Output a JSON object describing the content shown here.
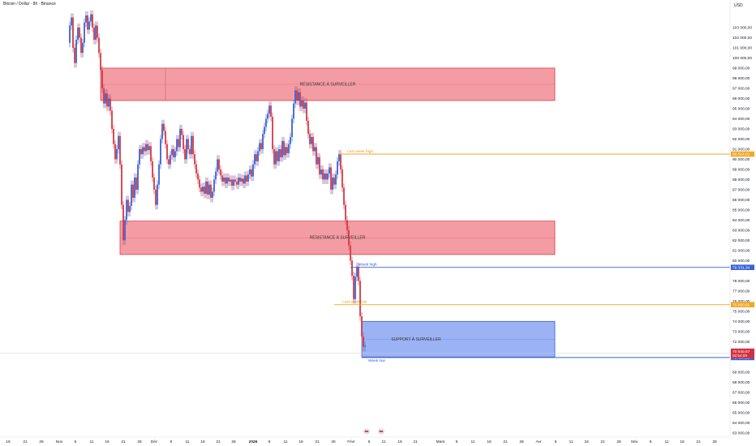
{
  "chart_data": {
    "type": "candlestick",
    "title": "Bitcoin / Dollar · 8h · Binance",
    "currency": "USD",
    "ylim": [
      62500,
      104600
    ],
    "y_ticks": [
      {
        "v": 103000,
        "label": "103 000,00"
      },
      {
        "v": 102000,
        "label": "102 000,00"
      },
      {
        "v": 101000,
        "label": "101 000,00"
      },
      {
        "v": 100000,
        "label": "100 000,00"
      },
      {
        "v": 99000,
        "label": "99 000,00"
      },
      {
        "v": 98000,
        "label": "98 000,00"
      },
      {
        "v": 97000,
        "label": "97 000,00"
      },
      {
        "v": 96000,
        "label": "96 000,00"
      },
      {
        "v": 95000,
        "label": "95 000,00"
      },
      {
        "v": 94000,
        "label": "94 000,00"
      },
      {
        "v": 93000,
        "label": "93 000,00"
      },
      {
        "v": 92000,
        "label": "92 000,00"
      },
      {
        "v": 91000,
        "label": "91 000,00"
      },
      {
        "v": 90000,
        "label": "90 000,00"
      },
      {
        "v": 89000,
        "label": "89 000,00"
      },
      {
        "v": 88000,
        "label": "88 000,00"
      },
      {
        "v": 87000,
        "label": "87 000,00"
      },
      {
        "v": 86000,
        "label": "86 000,00"
      },
      {
        "v": 85000,
        "label": "85 000,00"
      },
      {
        "v": 84000,
        "label": "84 000,00"
      },
      {
        "v": 83000,
        "label": "83 000,00"
      },
      {
        "v": 82000,
        "label": "82 000,00"
      },
      {
        "v": 81000,
        "label": "81 000,00"
      },
      {
        "v": 80000,
        "label": "80 000,00"
      },
      {
        "v": 78000,
        "label": "78 000,00"
      },
      {
        "v": 77000,
        "label": "77 000,00"
      },
      {
        "v": 76000,
        "label": "76 000,00"
      },
      {
        "v": 75000,
        "label": "75 000,00"
      },
      {
        "v": 74000,
        "label": "74 000,00"
      },
      {
        "v": 73000,
        "label": "73 000,00"
      },
      {
        "v": 72000,
        "label": "72 000,00"
      },
      {
        "v": 69000,
        "label": "69 000,00"
      },
      {
        "v": 68000,
        "label": "68 000,00"
      },
      {
        "v": 67000,
        "label": "67 000,00"
      },
      {
        "v": 66000,
        "label": "66 000,00"
      },
      {
        "v": 65000,
        "label": "65 000,00"
      },
      {
        "v": 64000,
        "label": "64 000,00"
      },
      {
        "v": 63000,
        "label": "63 000,00"
      }
    ],
    "x_ticks": [
      {
        "x": 10,
        "label": "16",
        "bold": false
      },
      {
        "x": 31,
        "label": "21",
        "bold": false
      },
      {
        "x": 51,
        "label": "26",
        "bold": false
      },
      {
        "x": 73,
        "label": "Nov",
        "bold": false
      },
      {
        "x": 93,
        "label": "6",
        "bold": false
      },
      {
        "x": 113,
        "label": "11",
        "bold": false
      },
      {
        "x": 132,
        "label": "16",
        "bold": false
      },
      {
        "x": 152,
        "label": "21",
        "bold": false
      },
      {
        "x": 172,
        "label": "26",
        "bold": false
      },
      {
        "x": 190,
        "label": "Déc",
        "bold": false
      },
      {
        "x": 211,
        "label": "6",
        "bold": false
      },
      {
        "x": 231,
        "label": "11",
        "bold": false
      },
      {
        "x": 250,
        "label": "16",
        "bold": false
      },
      {
        "x": 269,
        "label": "21",
        "bold": false
      },
      {
        "x": 288,
        "label": "26",
        "bold": false
      },
      {
        "x": 312,
        "label": "2026",
        "bold": true
      },
      {
        "x": 332,
        "label": "6",
        "bold": false
      },
      {
        "x": 352,
        "label": "11",
        "bold": false
      },
      {
        "x": 371,
        "label": "16",
        "bold": false
      },
      {
        "x": 391,
        "label": "21",
        "bold": false
      },
      {
        "x": 411,
        "label": "26",
        "bold": false
      },
      {
        "x": 433,
        "label": "Févr",
        "bold": false
      },
      {
        "x": 455,
        "label": "6",
        "bold": false
      },
      {
        "x": 473,
        "label": "11",
        "bold": false
      },
      {
        "x": 493,
        "label": "16",
        "bold": false
      },
      {
        "x": 512,
        "label": "21",
        "bold": false
      },
      {
        "x": 543,
        "label": "Mars",
        "bold": false
      },
      {
        "x": 563,
        "label": "6",
        "bold": false
      },
      {
        "x": 583,
        "label": "11",
        "bold": false
      },
      {
        "x": 603,
        "label": "16",
        "bold": false
      },
      {
        "x": 623,
        "label": "21",
        "bold": false
      },
      {
        "x": 643,
        "label": "26",
        "bold": false
      },
      {
        "x": 664,
        "label": "Avr",
        "bold": false
      },
      {
        "x": 685,
        "label": "6",
        "bold": false
      },
      {
        "x": 704,
        "label": "11",
        "bold": false
      },
      {
        "x": 723,
        "label": "16",
        "bold": false
      },
      {
        "x": 743,
        "label": "21",
        "bold": false
      },
      {
        "x": 763,
        "label": "26",
        "bold": false
      },
      {
        "x": 782,
        "label": "Mai",
        "bold": false
      },
      {
        "x": 802,
        "label": "6",
        "bold": false
      },
      {
        "x": 822,
        "label": "11",
        "bold": false
      },
      {
        "x": 841,
        "label": "16",
        "bold": false
      },
      {
        "x": 861,
        "label": "21",
        "bold": false
      },
      {
        "x": 881,
        "label": "26",
        "bold": false
      }
    ],
    "series_close": [
      [
        84,
        101500
      ],
      [
        86,
        103200
      ],
      [
        88,
        104000
      ],
      [
        90,
        101000
      ],
      [
        92,
        99500
      ],
      [
        94,
        101800
      ],
      [
        96,
        103000
      ],
      [
        98,
        102000
      ],
      [
        100,
        100500
      ],
      [
        102,
        101500
      ],
      [
        104,
        103500
      ],
      [
        106,
        104200
      ],
      [
        108,
        102800
      ],
      [
        110,
        103600
      ],
      [
        112,
        104300
      ],
      [
        114,
        103000
      ],
      [
        116,
        101800
      ],
      [
        118,
        103200
      ],
      [
        120,
        102000
      ],
      [
        122,
        100500
      ],
      [
        124,
        98800
      ],
      [
        126,
        97000
      ],
      [
        128,
        95500
      ],
      [
        130,
        96500
      ],
      [
        132,
        95200
      ],
      [
        134,
        96000
      ],
      [
        136,
        94800
      ],
      [
        138,
        93000
      ],
      [
        140,
        91500
      ],
      [
        142,
        90000
      ],
      [
        144,
        91000
      ],
      [
        146,
        92300
      ],
      [
        148,
        89500
      ],
      [
        150,
        85500
      ],
      [
        152,
        82000
      ],
      [
        154,
        84000
      ],
      [
        156,
        86000
      ],
      [
        158,
        84800
      ],
      [
        160,
        85400
      ],
      [
        162,
        87500
      ],
      [
        164,
        86200
      ],
      [
        166,
        88200
      ],
      [
        168,
        87000
      ],
      [
        170,
        89500
      ],
      [
        172,
        91000
      ],
      [
        174,
        90500
      ],
      [
        176,
        91200
      ],
      [
        178,
        90800
      ],
      [
        180,
        91500
      ],
      [
        182,
        90900
      ],
      [
        184,
        91300
      ],
      [
        186,
        89800
      ],
      [
        188,
        88200
      ],
      [
        190,
        87000
      ],
      [
        192,
        85500
      ],
      [
        194,
        87500
      ],
      [
        196,
        89500
      ],
      [
        198,
        92000
      ],
      [
        200,
        93500
      ],
      [
        202,
        92800
      ],
      [
        204,
        91500
      ],
      [
        206,
        90000
      ],
      [
        208,
        89500
      ],
      [
        210,
        90400
      ],
      [
        212,
        91000
      ],
      [
        214,
        90200
      ],
      [
        216,
        90800
      ],
      [
        218,
        92000
      ],
      [
        220,
        91200
      ],
      [
        222,
        93000
      ],
      [
        224,
        92400
      ],
      [
        226,
        91000
      ],
      [
        228,
        90000
      ],
      [
        230,
        92000
      ],
      [
        232,
        91000
      ],
      [
        234,
        90500
      ],
      [
        236,
        92300
      ],
      [
        238,
        90500
      ],
      [
        240,
        89500
      ],
      [
        242,
        88600
      ],
      [
        244,
        88000
      ],
      [
        246,
        87200
      ],
      [
        248,
        86800
      ],
      [
        250,
        87300
      ],
      [
        252,
        86600
      ],
      [
        254,
        87800
      ],
      [
        256,
        86500
      ],
      [
        258,
        87500
      ],
      [
        260,
        86200
      ],
      [
        262,
        86800
      ],
      [
        264,
        88000
      ],
      [
        266,
        88800
      ],
      [
        268,
        90000
      ],
      [
        270,
        89000
      ],
      [
        272,
        88400
      ],
      [
        274,
        87800
      ],
      [
        276,
        88200
      ],
      [
        278,
        87600
      ],
      [
        280,
        88200
      ],
      [
        282,
        87800
      ],
      [
        284,
        88000
      ],
      [
        286,
        87400
      ],
      [
        288,
        88000
      ],
      [
        290,
        87800
      ],
      [
        292,
        87500
      ],
      [
        294,
        88200
      ],
      [
        296,
        87800
      ],
      [
        298,
        88100
      ],
      [
        300,
        87600
      ],
      [
        302,
        88400
      ],
      [
        304,
        87800
      ],
      [
        306,
        88500
      ],
      [
        308,
        89000
      ],
      [
        310,
        88300
      ],
      [
        312,
        89500
      ],
      [
        314,
        90500
      ],
      [
        316,
        89800
      ],
      [
        318,
        90800
      ],
      [
        320,
        91600
      ],
      [
        322,
        91000
      ],
      [
        324,
        92500
      ],
      [
        326,
        93200
      ],
      [
        328,
        94000
      ],
      [
        330,
        94500
      ],
      [
        332,
        95300
      ],
      [
        334,
        94200
      ],
      [
        336,
        91000
      ],
      [
        338,
        89500
      ],
      [
        340,
        90800
      ],
      [
        342,
        89800
      ],
      [
        344,
        91000
      ],
      [
        346,
        90200
      ],
      [
        348,
        91800
      ],
      [
        350,
        90400
      ],
      [
        352,
        91200
      ],
      [
        354,
        90600
      ],
      [
        356,
        91500
      ],
      [
        358,
        92200
      ],
      [
        360,
        94000
      ],
      [
        362,
        95500
      ],
      [
        364,
        96800
      ],
      [
        366,
        95800
      ],
      [
        368,
        96600
      ],
      [
        370,
        95200
      ],
      [
        372,
        95800
      ],
      [
        374,
        95000
      ],
      [
        376,
        95600
      ],
      [
        378,
        93800
      ],
      [
        380,
        92500
      ],
      [
        382,
        91500
      ],
      [
        384,
        92200
      ],
      [
        386,
        90800
      ],
      [
        388,
        91200
      ],
      [
        390,
        89500
      ],
      [
        392,
        90200
      ],
      [
        394,
        88500
      ],
      [
        396,
        89000
      ],
      [
        398,
        88000
      ],
      [
        400,
        88600
      ],
      [
        402,
        88000
      ],
      [
        404,
        88600
      ],
      [
        406,
        89200
      ],
      [
        408,
        87000
      ],
      [
        410,
        88200
      ],
      [
        412,
        87500
      ],
      [
        414,
        88500
      ],
      [
        416,
        89800
      ],
      [
        418,
        90500
      ],
      [
        420,
        89000
      ],
      [
        422,
        87200
      ],
      [
        424,
        85500
      ],
      [
        426,
        84000
      ],
      [
        428,
        83000
      ],
      [
        430,
        81500
      ],
      [
        432,
        80000
      ],
      [
        434,
        78500
      ],
      [
        436,
        76200
      ],
      [
        438,
        78400
      ],
      [
        440,
        79400
      ],
      [
        442,
        78000
      ],
      [
        444,
        74500
      ],
      [
        446,
        72500
      ],
      [
        448,
        71500
      ],
      [
        450,
        71600
      ]
    ],
    "zones": [
      {
        "label": "RÉSISTANCE À SURVEILLER",
        "top": 99000,
        "bottom": 95800,
        "x_from": 124,
        "x_to": 684,
        "fill": "#f28b93",
        "stroke": "#d8434d"
      },
      {
        "label": "RÉSISTANCE À SURVEILLER",
        "top": 83900,
        "bottom": 80600,
        "x_from": 148,
        "x_to": 684,
        "fill": "#f28b93",
        "stroke": "#d8434d"
      },
      {
        "label": "SUPPORT À SURVEILLER",
        "top": 74000,
        "bottom": 70480,
        "x_from": 446,
        "x_to": 684,
        "fill": "#8aa6f2",
        "stroke": "#3961d8"
      }
    ],
    "levels": [
      {
        "label": "Last week high",
        "value": 90514.01,
        "price_label": "90 514,01",
        "x_from": 418,
        "color": "#f5a623",
        "text_color": "#ec9b16"
      },
      {
        "label": "Week high",
        "value": 79331.34,
        "price_label": "79 331,34",
        "x_from": 432,
        "color": "#3a64d8",
        "text_color": "#2f5bd6"
      },
      {
        "label": "Last week low",
        "value": 75650.91,
        "price_label": "75 650,91",
        "x_from": 412,
        "color": "#f5a623",
        "text_color": "#ec9b16"
      },
      {
        "label": "Week low",
        "value": 70434.36,
        "price_label": "70 434,36",
        "x_from": 446,
        "color": "#3a64d8",
        "text_color": "#2f5bd6"
      }
    ],
    "current": {
      "price_label": "70 840,67",
      "countdown": "02:54:09",
      "value": 70840.67,
      "color": "#d2303f"
    },
    "axis_color": "#b2b5be"
  }
}
